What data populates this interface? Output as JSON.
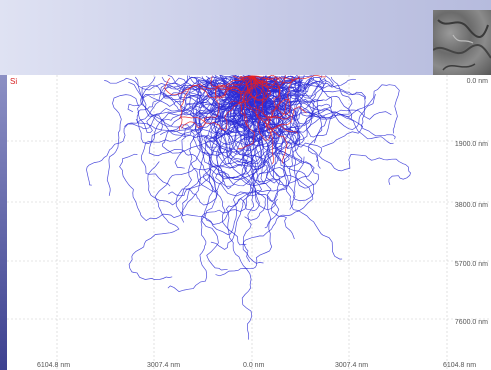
{
  "chart_data": {
    "type": "scatter",
    "title": "",
    "element_label": "Si",
    "x_ticks": [
      "6104.8 nm",
      "3007.4 nm",
      "0.0 nm",
      "3007.4 nm",
      "6104.8 nm"
    ],
    "y_ticks": [
      "0.0 nm",
      "1900.0 nm",
      "3800.0 nm",
      "5700.0 nm",
      "7600.0 nm"
    ],
    "x_range_nm": [
      -6104.8,
      6104.8
    ],
    "y_range_nm": [
      0,
      9100
    ],
    "grid": true,
    "series": [
      {
        "color": "#2b2bd6",
        "trajectory_count": 200
      },
      {
        "color": "#e82020",
        "trajectory_count": 30
      }
    ]
  },
  "colors": {
    "primary_trajectories": "#2b2bd6",
    "secondary_trajectories": "#e82020",
    "element_label": "#d62020"
  }
}
